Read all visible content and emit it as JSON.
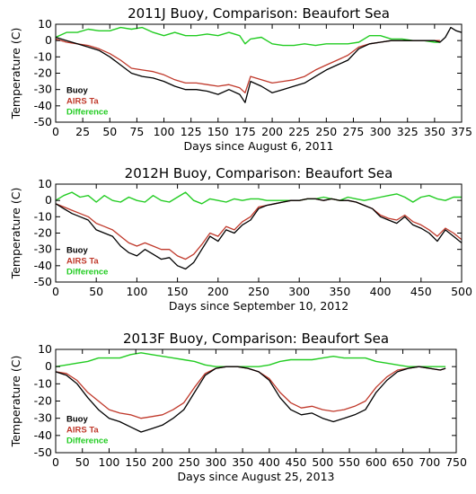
{
  "chart_data": [
    {
      "type": "line",
      "title": "2011J Buoy, Comparison: Beaufort Sea",
      "xlabel": "Days since August 6, 2011",
      "ylabel": "Temperature (C)",
      "xlim": [
        0,
        375
      ],
      "ylim": [
        -50,
        10
      ],
      "xticks": [
        0,
        25,
        50,
        75,
        100,
        125,
        150,
        175,
        200,
        225,
        250,
        275,
        300,
        325,
        350,
        375
      ],
      "yticks": [
        10,
        0,
        -10,
        -20,
        -30,
        -40,
        -50
      ],
      "legend": "bottom-left",
      "series": [
        {
          "name": "Buoy",
          "color": "#000000",
          "x": [
            0,
            10,
            20,
            30,
            40,
            50,
            60,
            70,
            80,
            90,
            100,
            110,
            120,
            130,
            140,
            150,
            160,
            170,
            175,
            180,
            190,
            200,
            210,
            220,
            230,
            240,
            250,
            260,
            270,
            280,
            290,
            300,
            310,
            320,
            330,
            340,
            350,
            355,
            360,
            365,
            370,
            375
          ],
          "y": [
            2,
            0,
            -2,
            -4,
            -6,
            -10,
            -15,
            -20,
            -22,
            -23,
            -25,
            -28,
            -30,
            -30,
            -31,
            -33,
            -30,
            -33,
            -38,
            -25,
            -28,
            -32,
            -30,
            -28,
            -26,
            -22,
            -18,
            -15,
            -12,
            -5,
            -2,
            -1,
            0,
            0,
            0,
            0,
            0,
            -1,
            2,
            8,
            6,
            5
          ]
        },
        {
          "name": "AIRS Ta",
          "color": "#c0392b",
          "x": [
            0,
            10,
            20,
            30,
            40,
            50,
            60,
            70,
            80,
            90,
            100,
            110,
            120,
            130,
            140,
            150,
            160,
            170,
            175,
            180,
            190,
            200,
            210,
            220,
            230,
            240,
            250,
            260,
            270,
            280,
            290,
            300,
            310,
            320,
            330,
            340,
            350,
            355
          ],
          "y": [
            1,
            -1,
            -2,
            -3,
            -5,
            -8,
            -12,
            -17,
            -18,
            -19,
            -21,
            -24,
            -26,
            -26,
            -27,
            -28,
            -27,
            -29,
            -32,
            -22,
            -24,
            -26,
            -25,
            -24,
            -22,
            -18,
            -15,
            -12,
            -9,
            -4,
            -2,
            -1,
            0,
            0,
            0,
            0,
            0,
            0
          ]
        },
        {
          "name": "Difference",
          "color": "#22cc22",
          "x": [
            0,
            10,
            20,
            30,
            40,
            50,
            60,
            70,
            80,
            90,
            100,
            110,
            120,
            130,
            140,
            150,
            160,
            170,
            175,
            180,
            190,
            200,
            210,
            220,
            230,
            240,
            250,
            260,
            270,
            280,
            290,
            300,
            310,
            320,
            330,
            340,
            350,
            355
          ],
          "y": [
            2,
            5,
            5,
            7,
            6,
            6,
            8,
            7,
            8,
            5,
            3,
            5,
            3,
            3,
            4,
            3,
            5,
            3,
            -2,
            1,
            2,
            -2,
            -3,
            -3,
            -2,
            -3,
            -2,
            -2,
            -2,
            -1,
            3,
            3,
            1,
            1,
            0,
            0,
            -1,
            -1
          ]
        }
      ]
    },
    {
      "type": "line",
      "title": "2012H Buoy, Comparison: Beaufort Sea",
      "xlabel": "Days since September 10, 2012",
      "ylabel": "Temperature (C)",
      "xlim": [
        0,
        500
      ],
      "ylim": [
        -50,
        10
      ],
      "xticks": [
        0,
        50,
        100,
        150,
        200,
        250,
        300,
        350,
        400,
        450,
        500
      ],
      "yticks": [
        10,
        0,
        -10,
        -20,
        -30,
        -40,
        -50
      ],
      "legend": "bottom-left",
      "series": [
        {
          "name": "Buoy",
          "color": "#000000",
          "x": [
            0,
            10,
            20,
            30,
            40,
            50,
            60,
            70,
            80,
            90,
            100,
            110,
            120,
            130,
            140,
            150,
            160,
            170,
            180,
            190,
            200,
            210,
            220,
            230,
            240,
            250,
            260,
            270,
            280,
            290,
            300,
            310,
            320,
            330,
            340,
            350,
            360,
            370,
            380,
            390,
            400,
            410,
            420,
            430,
            440,
            450,
            460,
            470,
            480,
            490,
            500
          ],
          "y": [
            -2,
            -5,
            -8,
            -10,
            -12,
            -18,
            -20,
            -22,
            -28,
            -32,
            -34,
            -30,
            -33,
            -36,
            -35,
            -40,
            -42,
            -38,
            -30,
            -22,
            -25,
            -18,
            -20,
            -15,
            -12,
            -5,
            -3,
            -2,
            -1,
            0,
            0,
            1,
            1,
            0,
            1,
            0,
            0,
            -1,
            -3,
            -5,
            -10,
            -12,
            -14,
            -10,
            -15,
            -17,
            -20,
            -25,
            -18,
            -22,
            -26
          ]
        },
        {
          "name": "AIRS Ta",
          "color": "#c0392b",
          "x": [
            0,
            10,
            20,
            30,
            40,
            50,
            60,
            70,
            80,
            90,
            100,
            110,
            120,
            130,
            140,
            150,
            160,
            170,
            180,
            190,
            200,
            210,
            220,
            230,
            240,
            250,
            260,
            270,
            280,
            290,
            300,
            310,
            320,
            330,
            340,
            350,
            360,
            370,
            380,
            390,
            400,
            410,
            420,
            430,
            440,
            450,
            460,
            470,
            480,
            490,
            500
          ],
          "y": [
            -2,
            -4,
            -6,
            -8,
            -10,
            -14,
            -16,
            -18,
            -22,
            -26,
            -28,
            -26,
            -28,
            -30,
            -30,
            -34,
            -36,
            -33,
            -27,
            -20,
            -22,
            -16,
            -18,
            -13,
            -10,
            -4,
            -3,
            -2,
            -1,
            0,
            0,
            1,
            1,
            0,
            1,
            0,
            0,
            -1,
            -3,
            -5,
            -9,
            -11,
            -12,
            -9,
            -13,
            -15,
            -18,
            -22,
            -17,
            -20,
            -24
          ]
        },
        {
          "name": "Difference",
          "color": "#22cc22",
          "x": [
            0,
            10,
            20,
            30,
            40,
            50,
            60,
            70,
            80,
            90,
            100,
            110,
            120,
            130,
            140,
            150,
            160,
            170,
            180,
            190,
            200,
            210,
            220,
            230,
            240,
            250,
            260,
            270,
            280,
            290,
            300,
            310,
            320,
            330,
            340,
            350,
            360,
            370,
            380,
            390,
            400,
            410,
            420,
            430,
            440,
            450,
            460,
            470,
            480,
            490,
            500
          ],
          "y": [
            0,
            3,
            5,
            2,
            3,
            -1,
            3,
            0,
            -1,
            2,
            0,
            -1,
            3,
            0,
            -1,
            2,
            5,
            0,
            -2,
            1,
            0,
            -1,
            1,
            0,
            1,
            1,
            0,
            0,
            0,
            0,
            0,
            1,
            1,
            2,
            1,
            0,
            2,
            1,
            0,
            1,
            2,
            3,
            4,
            2,
            -1,
            2,
            3,
            1,
            0,
            2,
            2
          ]
        }
      ]
    },
    {
      "type": "line",
      "title": "2013F Buoy, Comparison: Beaufort Sea",
      "xlabel": "Days since August 25, 2013",
      "ylabel": "Temperature (C)",
      "xlim": [
        0,
        750
      ],
      "ylim": [
        -50,
        10
      ],
      "xticks": [
        0,
        50,
        100,
        150,
        200,
        250,
        300,
        350,
        400,
        450,
        500,
        550,
        600,
        650,
        700,
        750
      ],
      "yticks": [
        10,
        0,
        -10,
        -20,
        -30,
        -40,
        -50
      ],
      "legend": "bottom-left",
      "series": [
        {
          "name": "Buoy",
          "color": "#000000",
          "x": [
            0,
            20,
            40,
            60,
            80,
            100,
            120,
            140,
            160,
            180,
            200,
            220,
            240,
            260,
            280,
            300,
            320,
            340,
            360,
            380,
            400,
            420,
            440,
            460,
            480,
            500,
            520,
            540,
            560,
            580,
            600,
            620,
            640,
            660,
            680,
            700,
            720,
            730
          ],
          "y": [
            -3,
            -5,
            -10,
            -18,
            -25,
            -30,
            -32,
            -35,
            -38,
            -36,
            -34,
            -30,
            -25,
            -15,
            -5,
            -1,
            0,
            0,
            -1,
            -3,
            -8,
            -18,
            -25,
            -28,
            -27,
            -30,
            -32,
            -30,
            -28,
            -25,
            -15,
            -8,
            -3,
            -1,
            0,
            -1,
            -2,
            -1
          ]
        },
        {
          "name": "AIRS Ta",
          "color": "#c0392b",
          "x": [
            0,
            20,
            40,
            60,
            80,
            100,
            120,
            140,
            160,
            180,
            200,
            220,
            240,
            260,
            280,
            300,
            320,
            340,
            360,
            380,
            400,
            420,
            440,
            460,
            480,
            500,
            520,
            540,
            560,
            580,
            600,
            620,
            640,
            660,
            680,
            700,
            720,
            730
          ],
          "y": [
            -3,
            -4,
            -8,
            -15,
            -20,
            -25,
            -27,
            -28,
            -30,
            -29,
            -28,
            -25,
            -21,
            -12,
            -4,
            -1,
            0,
            0,
            -1,
            -3,
            -7,
            -15,
            -21,
            -24,
            -23,
            -25,
            -26,
            -25,
            -23,
            -20,
            -12,
            -6,
            -2,
            -1,
            0,
            -1,
            -2,
            -1
          ]
        },
        {
          "name": "Difference",
          "color": "#22cc22",
          "x": [
            0,
            20,
            40,
            60,
            80,
            100,
            120,
            140,
            160,
            180,
            200,
            220,
            240,
            260,
            280,
            300,
            320,
            340,
            360,
            380,
            400,
            420,
            440,
            460,
            480,
            500,
            520,
            540,
            560,
            580,
            600,
            620,
            640,
            660,
            680,
            700,
            720,
            730
          ],
          "y": [
            0,
            1,
            2,
            3,
            5,
            5,
            5,
            7,
            8,
            7,
            6,
            5,
            4,
            3,
            1,
            0,
            0,
            0,
            0,
            0,
            1,
            3,
            4,
            4,
            4,
            5,
            6,
            5,
            5,
            5,
            3,
            2,
            1,
            0,
            0,
            0,
            0,
            0
          ]
        }
      ]
    }
  ]
}
